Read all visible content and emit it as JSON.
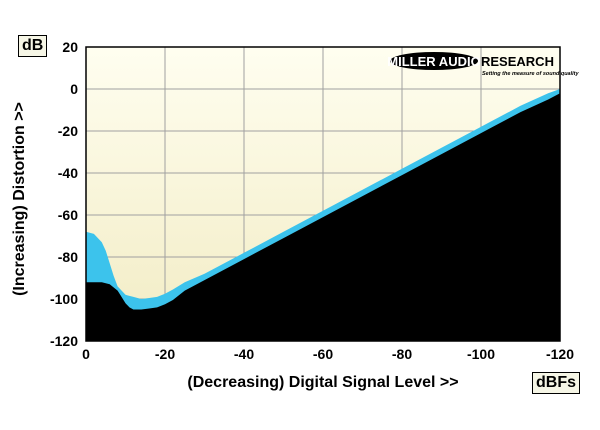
{
  "chart_data": {
    "type": "area",
    "y_unit": "dB",
    "x_unit": "dBFs",
    "xlabel": "(Decreasing) Digital Signal Level >>",
    "ylabel": "(Increasing) Distortion >>",
    "xlim": [
      0,
      -120
    ],
    "ylim": [
      -120,
      20
    ],
    "x_ticks": [
      0,
      -20,
      -40,
      -60,
      -80,
      -100,
      -120
    ],
    "y_ticks": [
      20,
      0,
      -20,
      -40,
      -60,
      -80,
      -100,
      -120
    ],
    "x_tick_labels": [
      "0",
      "-20",
      "-40",
      "-60",
      "-80",
      "-100",
      "-120"
    ],
    "y_tick_labels": [
      "20",
      "0",
      "-20",
      "-40",
      "-60",
      "-80",
      "-100",
      "-120"
    ],
    "grid": true,
    "series": [
      {
        "role": "upper",
        "color": "#3cc3ec",
        "x": [
          0,
          -2,
          -4,
          -5,
          -6,
          -7,
          -8,
          -10,
          -12,
          -14,
          -16,
          -18,
          -20,
          -22,
          -25,
          -30,
          -40,
          -50,
          -60,
          -70,
          -80,
          -90,
          -100,
          -110,
          -117,
          -120
        ],
        "y": [
          -68,
          -69,
          -73,
          -77,
          -83,
          -89,
          -94,
          -98,
          -99,
          -100,
          -99.5,
          -99,
          -97.5,
          -95.5,
          -92,
          -88,
          -78,
          -68,
          -58,
          -48,
          -38,
          -28,
          -18,
          -8,
          -2,
          0
        ]
      },
      {
        "role": "lower",
        "color": "#000000",
        "x": [
          0,
          -2,
          -4,
          -6,
          -8,
          -9,
          -10,
          -11,
          -12,
          -14,
          -16,
          -18,
          -20,
          -22,
          -25,
          -30,
          -40,
          -50,
          -60,
          -70,
          -80,
          -90,
          -100,
          -110,
          -117,
          -120
        ],
        "y": [
          -92,
          -92,
          -92,
          -93,
          -96,
          -99,
          -102,
          -104,
          -105,
          -105,
          -104.5,
          -104,
          -102.5,
          -100.5,
          -96,
          -91,
          -81,
          -71,
          -61,
          -51,
          -41,
          -31,
          -21,
          -11,
          -5,
          -2
        ]
      }
    ],
    "colors": {
      "plot_bg_top": "#fffef0",
      "plot_bg_bottom": "#f2ecc4",
      "grid": "#a0a0a0"
    }
  },
  "logo": {
    "name": "MILLER AUDIO",
    "name_suffix": "RESEARCH",
    "tagline": "Setting the measure of sound quality"
  }
}
